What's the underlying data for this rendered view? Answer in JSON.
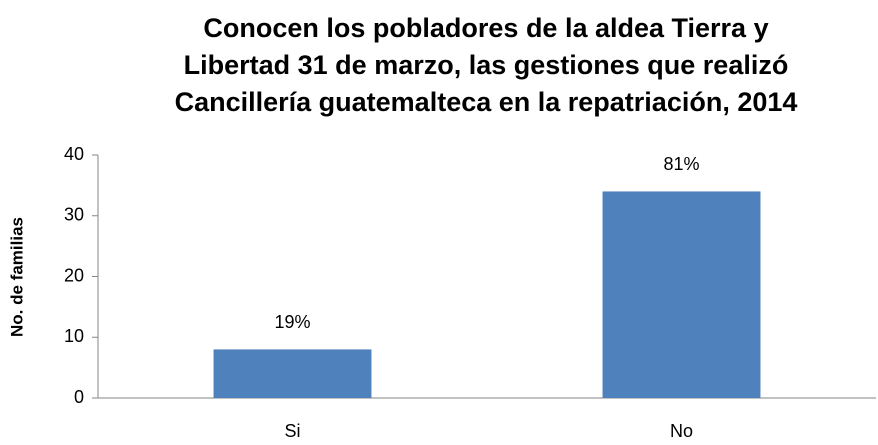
{
  "chart_data": {
    "type": "bar",
    "title": [
      "Conocen los pobladores de la aldea Tierra y",
      "Libertad 31 de marzo, las gestiones que realizó",
      "Cancillería guatemalteca en la repatriación, 2014"
    ],
    "y_label": "No. de familias",
    "categories": [
      "Si",
      "No"
    ],
    "values": [
      8,
      34
    ],
    "percent_labels": [
      "19%",
      "81%"
    ],
    "color": "#4f81bd",
    "ylim": [
      0,
      40
    ],
    "yticks": [
      0,
      10,
      20,
      30,
      40
    ],
    "grid": false
  }
}
